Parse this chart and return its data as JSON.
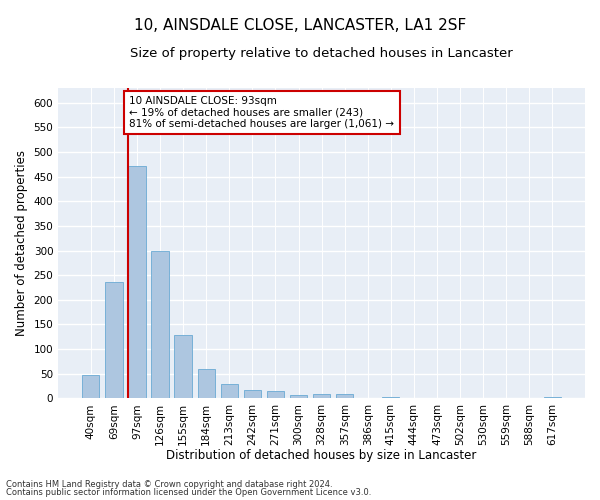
{
  "title": "10, AINSDALE CLOSE, LANCASTER, LA1 2SF",
  "subtitle": "Size of property relative to detached houses in Lancaster",
  "xlabel": "Distribution of detached houses by size in Lancaster",
  "ylabel": "Number of detached properties",
  "categories": [
    "40sqm",
    "69sqm",
    "97sqm",
    "126sqm",
    "155sqm",
    "184sqm",
    "213sqm",
    "242sqm",
    "271sqm",
    "300sqm",
    "328sqm",
    "357sqm",
    "386sqm",
    "415sqm",
    "444sqm",
    "473sqm",
    "502sqm",
    "530sqm",
    "559sqm",
    "588sqm",
    "617sqm"
  ],
  "values": [
    48,
    236,
    472,
    299,
    129,
    60,
    29,
    16,
    14,
    6,
    9,
    8,
    0,
    2,
    0,
    0,
    0,
    0,
    0,
    0,
    3
  ],
  "bar_color": "#adc6e0",
  "bar_edge_color": "#6aaad4",
  "vline_color": "#cc0000",
  "annotation_text": "10 AINSDALE CLOSE: 93sqm\n← 19% of detached houses are smaller (243)\n81% of semi-detached houses are larger (1,061) →",
  "annotation_box_color": "white",
  "annotation_box_edge_color": "#cc0000",
  "ylim": [
    0,
    630
  ],
  "yticks": [
    0,
    50,
    100,
    150,
    200,
    250,
    300,
    350,
    400,
    450,
    500,
    550,
    600
  ],
  "background_color": "#e8eef6",
  "grid_color": "white",
  "footer_line1": "Contains HM Land Registry data © Crown copyright and database right 2024.",
  "footer_line2": "Contains public sector information licensed under the Open Government Licence v3.0.",
  "title_fontsize": 11,
  "subtitle_fontsize": 9.5,
  "axis_label_fontsize": 8.5,
  "tick_fontsize": 7.5,
  "annotation_fontsize": 7.5,
  "footer_fontsize": 6,
  "vline_bar_index": 2
}
